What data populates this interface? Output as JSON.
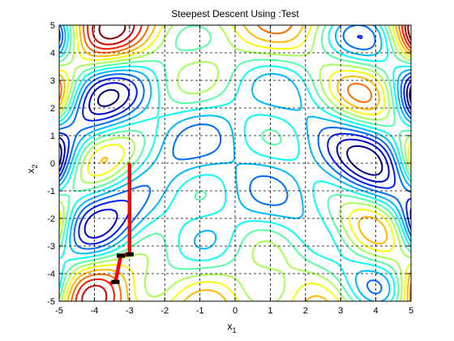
{
  "chart_data": {
    "type": "contour",
    "title": "Steepest Descent Using :Test",
    "xlabel": {
      "base": "x",
      "subscript": "1"
    },
    "ylabel": {
      "base": "x",
      "subscript": "2"
    },
    "xlim": [
      -5,
      5
    ],
    "ylim": [
      -5,
      5
    ],
    "xticks": [
      "-5",
      "-4",
      "-3",
      "-2",
      "-1",
      "0",
      "1",
      "2",
      "3",
      "4",
      "5"
    ],
    "yticks": [
      "-5",
      "-4",
      "-3",
      "-2",
      "-1",
      "0",
      "1",
      "2",
      "3",
      "4",
      "5"
    ],
    "grid": true,
    "colormap": "jet",
    "contour_levels": 14,
    "path": {
      "color": "#ff0000",
      "points": [
        [
          -3.0,
          0.0
        ],
        [
          -3.0,
          -3.3
        ],
        [
          -3.25,
          -3.35
        ],
        [
          -3.4,
          -4.3
        ],
        [
          -3.55,
          -4.35
        ]
      ]
    },
    "path_markers": {
      "color": "#000000",
      "points": [
        [
          -3.0,
          -3.3
        ],
        [
          -3.25,
          -3.35
        ],
        [
          -3.4,
          -4.3
        ]
      ]
    }
  }
}
